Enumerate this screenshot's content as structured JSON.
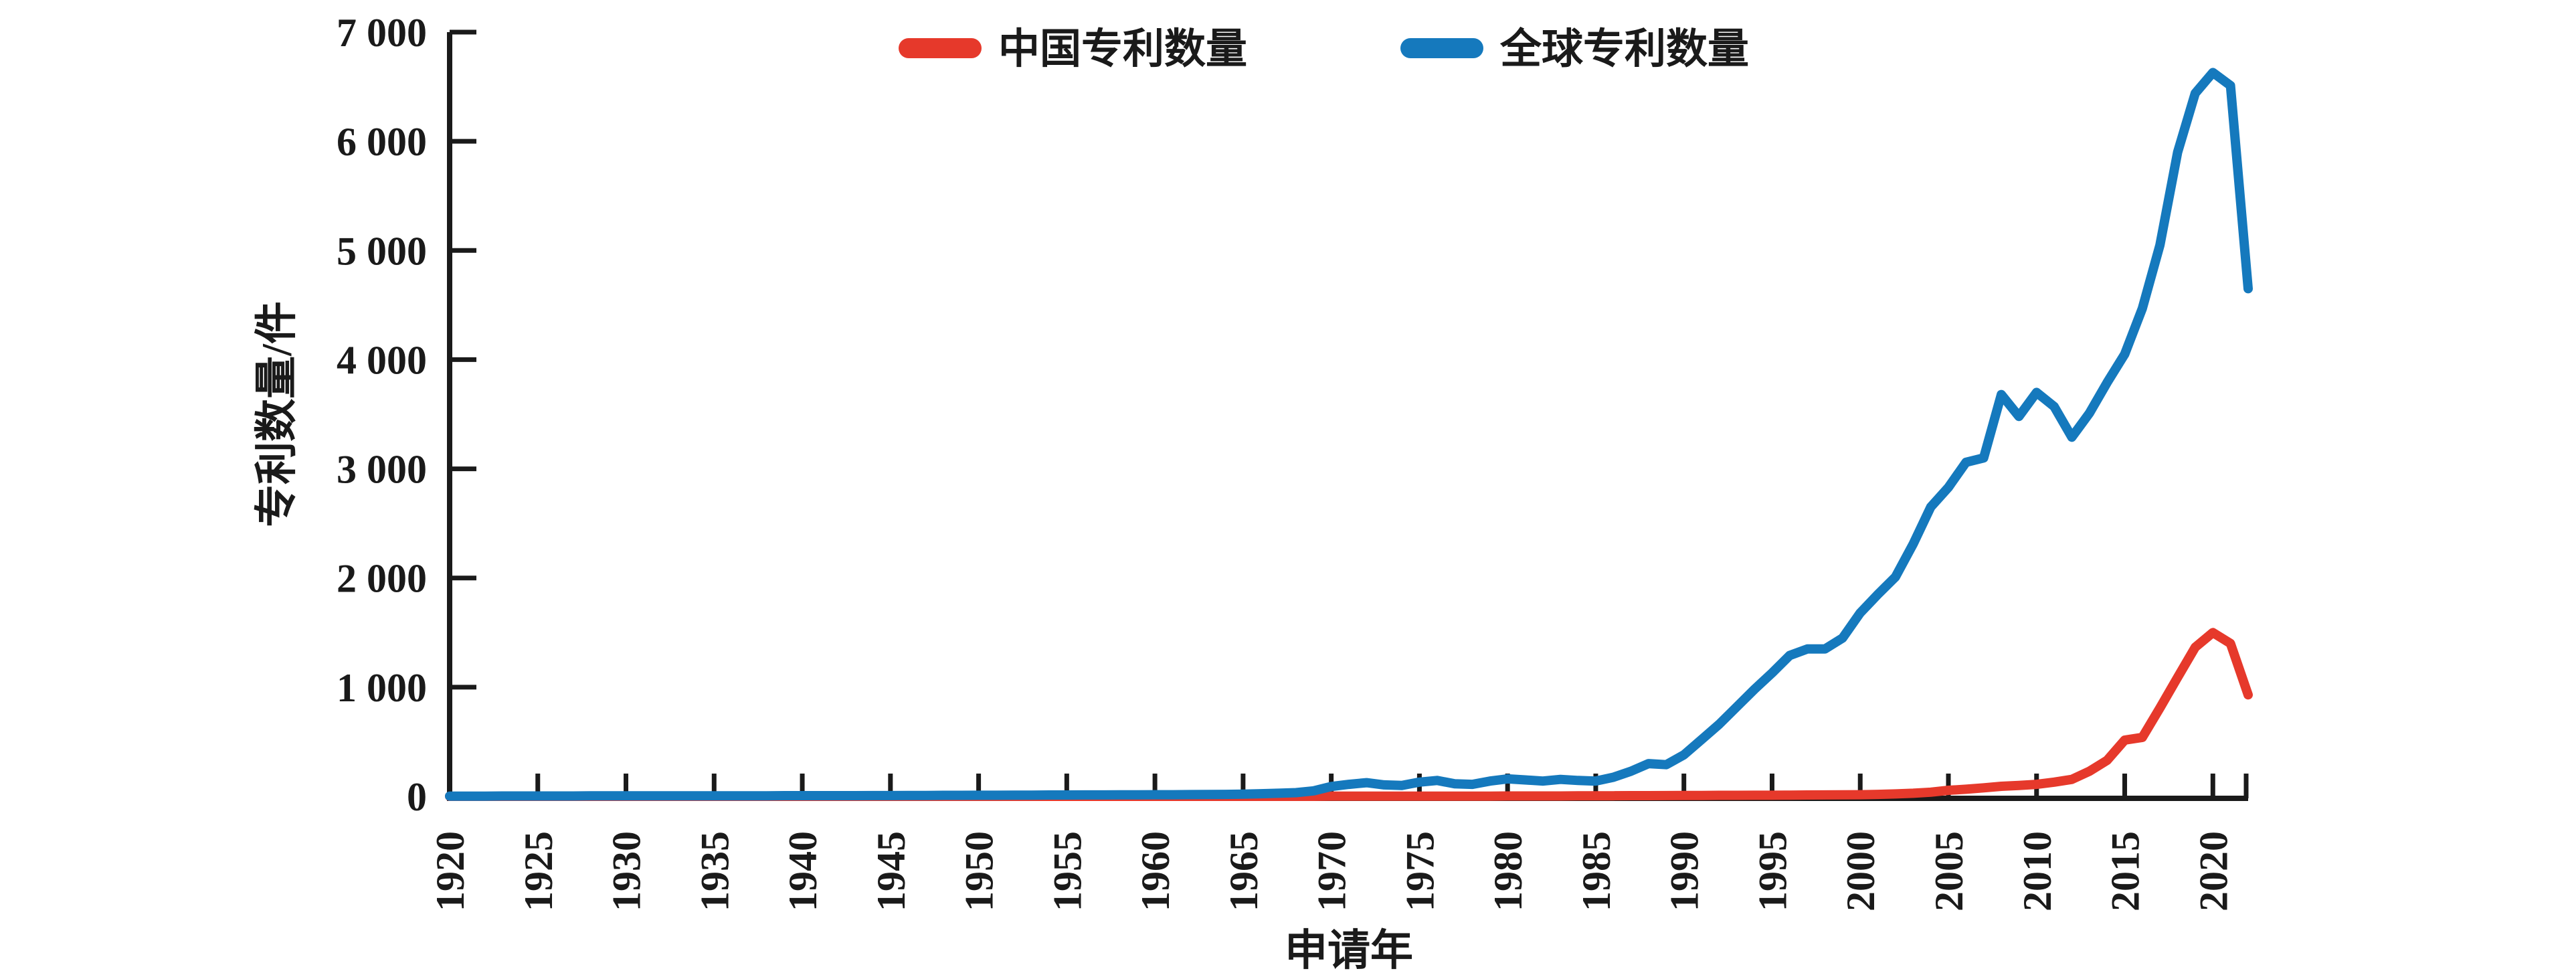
{
  "page": {
    "background": "#ffffff",
    "axis_color": "#1a1a1a"
  },
  "chart_data": {
    "type": "line",
    "title": "",
    "xlabel": "申请年",
    "ylabel": "专利数量/件",
    "xlim": [
      1920,
      2022
    ],
    "ylim": [
      0,
      7000
    ],
    "grid": false,
    "legend_position": "top-center",
    "x_ticks": [
      1920,
      1925,
      1930,
      1935,
      1940,
      1945,
      1950,
      1955,
      1960,
      1965,
      1970,
      1975,
      1980,
      1985,
      1990,
      1995,
      2000,
      2005,
      2010,
      2015,
      2020
    ],
    "y_ticks": [
      0,
      1000,
      2000,
      3000,
      4000,
      5000,
      6000,
      7000
    ],
    "y_tick_labels": [
      "0",
      "1 000",
      "2 000",
      "3 000",
      "4 000",
      "5 000",
      "6 000",
      "7 000"
    ],
    "x_start_year": 1920,
    "x_step_years": 1,
    "series": [
      {
        "name": "中国专利数量",
        "color": "#e6392b",
        "values": [
          0,
          0,
          0,
          0,
          0,
          0,
          0,
          0,
          0,
          0,
          0,
          0,
          0,
          0,
          0,
          0,
          0,
          0,
          0,
          0,
          0,
          0,
          0,
          0,
          0,
          0,
          0,
          0,
          0,
          0,
          0,
          0,
          0,
          0,
          0,
          0,
          0,
          0,
          0,
          0,
          0,
          0,
          0,
          0,
          0,
          0,
          0,
          0,
          0,
          0,
          1,
          1,
          1,
          1,
          1,
          2,
          2,
          2,
          2,
          2,
          3,
          3,
          3,
          3,
          4,
          5,
          5,
          6,
          6,
          7,
          8,
          8,
          9,
          9,
          10,
          10,
          11,
          12,
          13,
          14,
          15,
          18,
          22,
          28,
          38,
          55,
          65,
          78,
          92,
          100,
          110,
          130,
          155,
          230,
          330,
          515,
          540,
          810,
          1090,
          1365,
          1500,
          1400,
          930
        ]
      },
      {
        "name": "全球专利数量",
        "color": "#1579bd",
        "values": [
          2,
          2,
          2,
          3,
          3,
          3,
          3,
          3,
          4,
          4,
          4,
          4,
          4,
          5,
          5,
          5,
          5,
          5,
          5,
          6,
          6,
          6,
          6,
          6,
          7,
          7,
          8,
          8,
          9,
          9,
          10,
          10,
          11,
          11,
          12,
          12,
          13,
          13,
          14,
          14,
          15,
          15,
          16,
          17,
          18,
          20,
          24,
          28,
          34,
          50,
          90,
          110,
          125,
          105,
          100,
          130,
          145,
          115,
          110,
          140,
          160,
          150,
          140,
          155,
          145,
          140,
          175,
          230,
          300,
          290,
          380,
          520,
          660,
          820,
          980,
          1130,
          1290,
          1350,
          1350,
          1450,
          1680,
          1850,
          2010,
          2310,
          2650,
          2830,
          3060,
          3100,
          3680,
          3480,
          3700,
          3570,
          3290,
          3510,
          3790,
          4050,
          4470,
          5050,
          5900,
          6440,
          6630,
          6510,
          4650
        ]
      }
    ]
  }
}
